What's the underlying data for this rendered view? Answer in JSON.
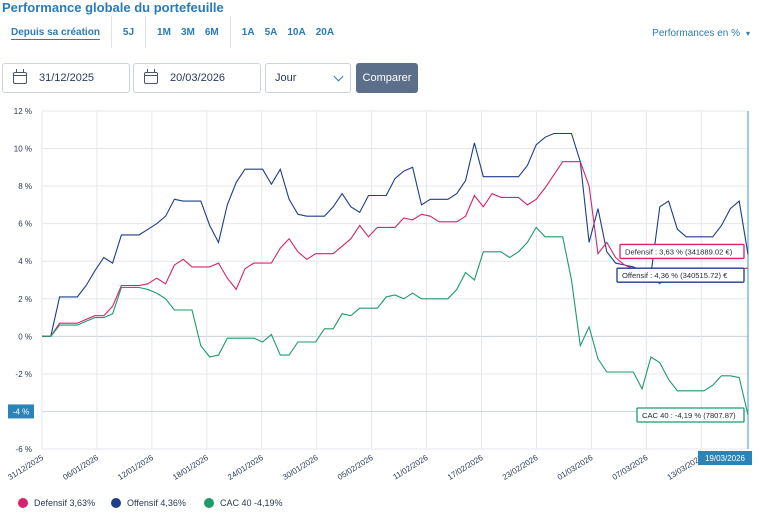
{
  "header": {
    "title": "Performance globale du portefeuille",
    "periods": [
      [
        "Depuis sa création"
      ],
      [
        "5J"
      ],
      [
        "1M",
        "3M",
        "6M"
      ],
      [
        "1A",
        "5A",
        "10A",
        "20A"
      ]
    ],
    "active_period": "Depuis sa création",
    "mode_label": "Performances en %",
    "mode_icon": "chevron-down-icon"
  },
  "controls": {
    "start_date": "31/12/2025",
    "end_date": "20/03/2026",
    "granularity": "Jour",
    "compare_label": "Comparer",
    "calendar_icon": "calendar-icon"
  },
  "chart_data": {
    "type": "line",
    "ylim": [
      -6,
      12
    ],
    "yticks": [
      12,
      10,
      8,
      6,
      4,
      2,
      0,
      -2,
      -4,
      -6
    ],
    "ytick_labels": [
      "12 %",
      "10 %",
      "8 %",
      "6 %",
      "4 %",
      "2 %",
      "0 %",
      "-2 %",
      "-4 %",
      "-6 %"
    ],
    "x_labels": [
      "31/12/2025",
      "06/01/2026",
      "12/01/2026",
      "18/01/2026",
      "24/01/2026",
      "30/01/2026",
      "05/02/2026",
      "11/02/2026",
      "17/02/2026",
      "23/02/2026",
      "01/03/2026",
      "07/03/2026",
      "13/03/2026"
    ],
    "crosshair_x_label": "19/03/2026",
    "crosshair_y_label": "-4 %",
    "series": [
      {
        "name": "Offensif",
        "color": "#1e3d8a",
        "values": [
          0,
          0,
          2.1,
          2.1,
          2.1,
          2.7,
          3.5,
          4.2,
          3.9,
          5.4,
          5.4,
          5.4,
          5.7,
          6.0,
          6.4,
          7.3,
          7.2,
          7.2,
          7.2,
          5.9,
          5.0,
          7.0,
          8.2,
          8.9,
          8.9,
          8.9,
          8.1,
          8.9,
          7.3,
          6.5,
          6.4,
          6.4,
          6.4,
          6.9,
          7.6,
          6.9,
          6.6,
          7.5,
          7.5,
          7.5,
          8.4,
          8.8,
          9.0,
          7.0,
          7.3,
          7.3,
          7.3,
          7.6,
          8.3,
          10.3,
          8.5,
          8.5,
          8.5,
          8.5,
          8.5,
          9.1,
          10.2,
          10.6,
          10.8,
          10.8,
          10.8,
          9.3,
          5.0,
          6.8,
          4.5,
          3.9,
          3.8,
          3.7,
          3.5,
          3.3,
          6.9,
          7.2,
          5.7,
          5.3,
          5.3,
          5.3,
          5.3,
          5.9,
          6.8,
          7.2,
          4.36
        ],
        "end_label": "Offensif : 4,36 % (340515.72) €"
      },
      {
        "name": "Defensif",
        "color": "#d6246e",
        "values": [
          0,
          0,
          0.7,
          0.7,
          0.7,
          0.9,
          1.1,
          1.1,
          1.6,
          2.7,
          2.7,
          2.7,
          2.8,
          3.1,
          2.8,
          3.8,
          4.1,
          3.7,
          3.7,
          3.7,
          3.9,
          3.1,
          2.5,
          3.6,
          3.9,
          3.9,
          3.9,
          4.7,
          5.2,
          4.5,
          4.1,
          4.4,
          4.4,
          4.4,
          4.8,
          5.2,
          5.9,
          5.3,
          5.8,
          5.8,
          5.8,
          6.3,
          6.2,
          6.5,
          6.4,
          6.1,
          6.1,
          6.1,
          6.4,
          7.5,
          6.9,
          7.6,
          7.4,
          7.4,
          7.4,
          7.0,
          7.3,
          7.9,
          8.6,
          9.3,
          9.3,
          9.3,
          8.0,
          4.4,
          5.0,
          4.2,
          3.8,
          3.6,
          3.4,
          3.2,
          2.8,
          3.6,
          3.6,
          3.6,
          3.6,
          3.6,
          3.6,
          3.6,
          3.6,
          3.6,
          3.63
        ],
        "end_label": "Defensif : 3,63 % (341889.02 €)"
      },
      {
        "name": "CAC 40",
        "color": "#1f9a6a",
        "values": [
          0,
          0,
          0.6,
          0.6,
          0.6,
          0.8,
          1.0,
          1.0,
          1.2,
          2.6,
          2.6,
          2.6,
          2.5,
          2.3,
          2.0,
          1.4,
          1.4,
          1.4,
          -0.5,
          -1.1,
          -1.0,
          -0.1,
          -0.1,
          -0.1,
          -0.1,
          -0.3,
          0.1,
          -1.0,
          -1.0,
          -0.3,
          -0.3,
          -0.3,
          0.4,
          0.4,
          1.2,
          1.1,
          1.5,
          1.5,
          1.5,
          2.1,
          2.2,
          2.0,
          2.3,
          2.0,
          2.0,
          2.0,
          2.0,
          2.5,
          3.4,
          3.0,
          4.5,
          4.5,
          4.5,
          4.2,
          4.5,
          5.0,
          5.8,
          5.3,
          5.3,
          5.3,
          3.0,
          -0.5,
          0.5,
          -1.2,
          -1.9,
          -1.9,
          -1.9,
          -1.9,
          -2.8,
          -1.1,
          -1.4,
          -2.3,
          -2.9,
          -2.9,
          -2.9,
          -2.9,
          -2.6,
          -2.1,
          -2.1,
          -2.2,
          -4.19
        ],
        "end_label": "CAC 40 : -4,19 % (7807.87)"
      }
    ],
    "legend": [
      {
        "name": "Defensif",
        "value": "3,63%",
        "color": "#d6246e"
      },
      {
        "name": "Offensif",
        "value": "4,36%",
        "color": "#1e3d8a"
      },
      {
        "name": "CAC 40",
        "value": "-4,19%",
        "color": "#1f9a6a"
      }
    ]
  }
}
